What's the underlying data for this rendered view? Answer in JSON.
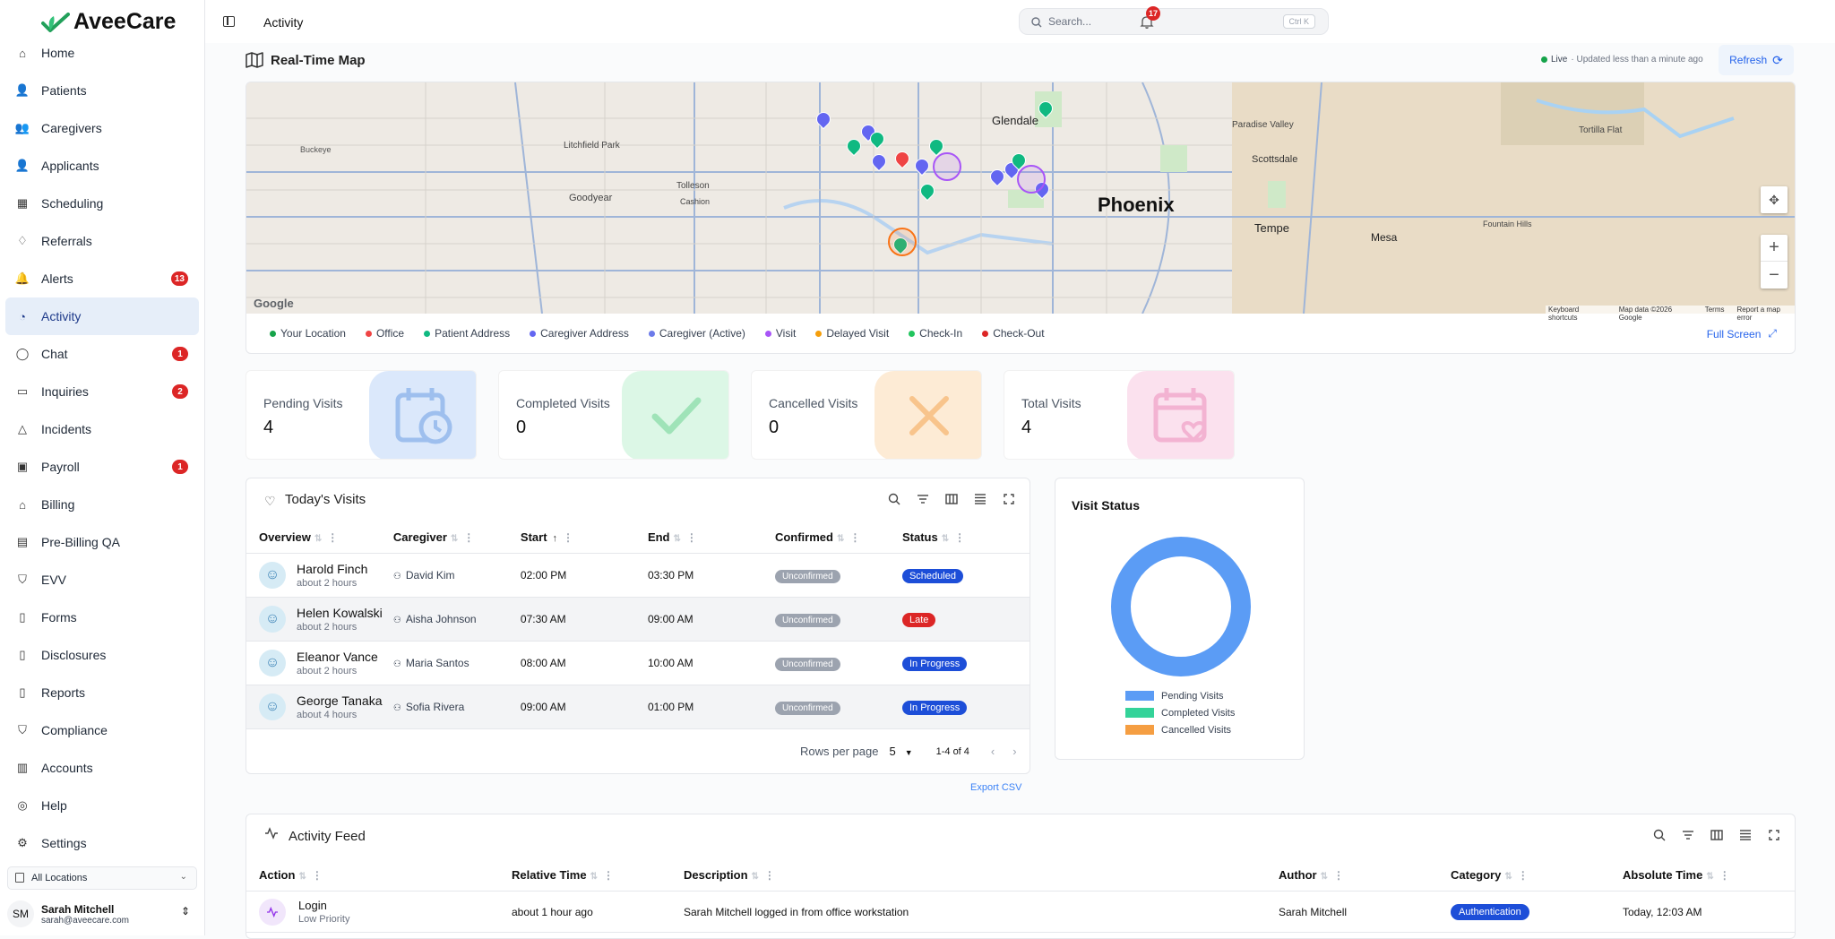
{
  "brand": {
    "name": "AveeCare",
    "color": "#22a05a"
  },
  "header": {
    "title": "Activity",
    "notification_count": "17"
  },
  "search": {
    "placeholder": "Search...",
    "shortcut": "Ctrl K"
  },
  "sidebar": {
    "items": [
      {
        "label": "Home",
        "icon": "home-icon"
      },
      {
        "label": "Patients",
        "icon": "user-icon"
      },
      {
        "label": "Caregivers",
        "icon": "users-icon"
      },
      {
        "label": "Applicants",
        "icon": "user-plus-icon"
      },
      {
        "label": "Scheduling",
        "icon": "calendar-icon"
      },
      {
        "label": "Referrals",
        "icon": "handshake-icon"
      },
      {
        "label": "Alerts",
        "icon": "bell-icon",
        "badge": "13"
      },
      {
        "label": "Activity",
        "icon": "rss-icon",
        "active": true
      },
      {
        "label": "Chat",
        "icon": "chat-icon",
        "badge": "1"
      },
      {
        "label": "Inquiries",
        "icon": "inbox-icon",
        "badge": "2"
      },
      {
        "label": "Incidents",
        "icon": "warning-icon"
      },
      {
        "label": "Payroll",
        "icon": "wallet-icon",
        "badge": "1"
      },
      {
        "label": "Billing",
        "icon": "bank-icon"
      },
      {
        "label": "Pre-Billing QA",
        "icon": "clipboard-icon"
      },
      {
        "label": "EVV",
        "icon": "shield-check-icon"
      },
      {
        "label": "Forms",
        "icon": "file-icon"
      },
      {
        "label": "Disclosures",
        "icon": "file-text-icon"
      },
      {
        "label": "Reports",
        "icon": "report-icon"
      },
      {
        "label": "Compliance",
        "icon": "shield-icon"
      },
      {
        "label": "Accounts",
        "icon": "building-icon"
      },
      {
        "label": "Help",
        "icon": "help-icon"
      },
      {
        "label": "Settings",
        "icon": "gear-icon"
      }
    ],
    "location": "All Locations",
    "user": {
      "initials": "SM",
      "name": "Sarah Mitchell",
      "email": "sarah@aveecare.com"
    }
  },
  "map": {
    "title": "Real-Time Map",
    "live_label": "Live",
    "updated": "· Updated less than a minute ago",
    "refresh_label": "Refresh",
    "full_screen_label": "Full Screen",
    "city_labels": [
      "Phoenix",
      "Glendale",
      "Tempe",
      "Mesa",
      "Scottsdale",
      "Paradise Valley",
      "Fountain Hills",
      "Tortilla Flat",
      "Cashion",
      "Tolleson",
      "Goodyear",
      "Litchfield Park",
      "Buckeye"
    ],
    "attribution": [
      "Keyboard shortcuts",
      "Map data ©2026 Google",
      "Terms",
      "Report a map error"
    ],
    "google": "Google",
    "legend": [
      {
        "label": "Your Location",
        "color": "#16a34a"
      },
      {
        "label": "Office",
        "color": "#ef4444"
      },
      {
        "label": "Patient Address",
        "color": "#10b981"
      },
      {
        "label": "Caregiver Address",
        "color": "#6366f1"
      },
      {
        "label": "Caregiver (Active)",
        "color": "#6c7bea"
      },
      {
        "label": "Visit",
        "color": "#a855f7"
      },
      {
        "label": "Delayed Visit",
        "color": "#f59e0b"
      },
      {
        "label": "Check-In",
        "color": "#22c55e"
      },
      {
        "label": "Check-Out",
        "color": "#dc2626"
      }
    ]
  },
  "stats": [
    {
      "label": "Pending Visits",
      "value": "4",
      "icon": "calendar-clock-icon",
      "bg": "#dbe8fb",
      "fg": "#9ebfee"
    },
    {
      "label": "Completed Visits",
      "value": "0",
      "icon": "check-icon",
      "bg": "#dcf7e6",
      "fg": "#9fe3b8"
    },
    {
      "label": "Cancelled Visits",
      "value": "0",
      "icon": "x-icon",
      "bg": "#fdebd5",
      "fg": "#f8c48c"
    },
    {
      "label": "Total Visits",
      "value": "4",
      "icon": "calendar-heart-icon",
      "bg": "#fbe1ee",
      "fg": "#f3b3d2"
    }
  ],
  "visits": {
    "title": "Today's Visits",
    "columns": [
      "Overview",
      "Caregiver",
      "Start",
      "End",
      "Confirmed",
      "Status"
    ],
    "rows": [
      {
        "name": "Harold Finch",
        "ago": "about 2 hours",
        "caregiver": "David Kim",
        "start": "02:00 PM",
        "end": "03:30 PM",
        "confirmed": "Unconfirmed",
        "status": "Scheduled"
      },
      {
        "name": "Helen Kowalski",
        "ago": "about 2 hours",
        "caregiver": "Aisha Johnson",
        "start": "07:30 AM",
        "end": "09:00 AM",
        "confirmed": "Unconfirmed",
        "status": "Late"
      },
      {
        "name": "Eleanor Vance",
        "ago": "about 2 hours",
        "caregiver": "Maria Santos",
        "start": "08:00 AM",
        "end": "10:00 AM",
        "confirmed": "Unconfirmed",
        "status": "In Progress"
      },
      {
        "name": "George Tanaka",
        "ago": "about 4 hours",
        "caregiver": "Sofia Rivera",
        "start": "09:00 AM",
        "end": "01:00 PM",
        "confirmed": "Unconfirmed",
        "status": "In Progress"
      }
    ],
    "rows_per_page_label": "Rows per page",
    "rows_per_page": "5",
    "range": "1-4 of 4",
    "export_label": "Export CSV"
  },
  "visit_status": {
    "title": "Visit Status",
    "legend": [
      {
        "label": "Pending Visits",
        "color": "#5b9cf5"
      },
      {
        "label": "Completed Visits",
        "color": "#34d399"
      },
      {
        "label": "Cancelled Visits",
        "color": "#f59e42"
      }
    ],
    "values": [
      4,
      0,
      0
    ]
  },
  "feed": {
    "title": "Activity Feed",
    "columns": [
      "Action",
      "Relative Time",
      "Description",
      "Author",
      "Category",
      "Absolute Time"
    ],
    "rows": [
      {
        "action": "Login",
        "priority": "Low Priority",
        "relative": "about 1 hour ago",
        "description": "Sarah Mitchell logged in from office workstation",
        "author": "Sarah Mitchell",
        "category": "Authentication",
        "absolute": "Today, 12:03 AM"
      }
    ]
  }
}
